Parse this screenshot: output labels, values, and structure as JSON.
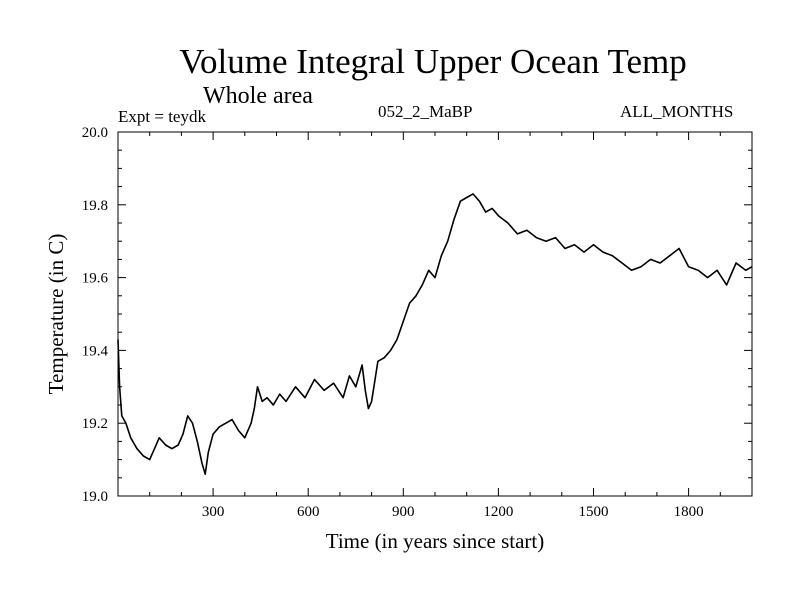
{
  "header": {
    "title": "Volume Integral Upper Ocean Temp",
    "subtitle": "Whole area",
    "experiment": "Expt = teydk",
    "run_label": "052_2_MaBP",
    "months_label": "ALL_MONTHS"
  },
  "chart_data": {
    "type": "line",
    "title": "Volume Integral Upper Ocean Temp",
    "xlabel": "Time (in years since start)",
    "ylabel": "Temperature (in C)",
    "xlim": [
      0,
      2000
    ],
    "ylim": [
      19.0,
      20.0
    ],
    "xticks": [
      300,
      600,
      900,
      1200,
      1500,
      1800
    ],
    "xtick_labels": [
      "300",
      "600",
      "900",
      "1200",
      "1500",
      "1800"
    ],
    "yticks": [
      19.0,
      19.2,
      19.4,
      19.6,
      19.8,
      20.0
    ],
    "ytick_labels": [
      "19.0",
      "19.2",
      "19.4",
      "19.6",
      "19.8",
      "20.0"
    ],
    "grid": false,
    "series": [
      {
        "name": "teydk",
        "x": [
          0,
          5,
          12,
          25,
          40,
          60,
          80,
          100,
          115,
          130,
          150,
          170,
          190,
          205,
          220,
          235,
          250,
          265,
          275,
          285,
          300,
          320,
          340,
          360,
          380,
          400,
          420,
          430,
          440,
          455,
          470,
          490,
          510,
          530,
          560,
          590,
          620,
          650,
          680,
          710,
          730,
          750,
          770,
          780,
          790,
          800,
          820,
          840,
          860,
          880,
          900,
          920,
          940,
          960,
          980,
          1000,
          1020,
          1040,
          1060,
          1080,
          1100,
          1120,
          1140,
          1160,
          1180,
          1200,
          1230,
          1260,
          1290,
          1320,
          1350,
          1380,
          1410,
          1440,
          1470,
          1500,
          1530,
          1560,
          1590,
          1620,
          1650,
          1680,
          1710,
          1740,
          1770,
          1800,
          1830,
          1860,
          1890,
          1920,
          1950,
          1980,
          2000
        ],
        "values": [
          19.43,
          19.3,
          19.22,
          19.2,
          19.16,
          19.13,
          19.11,
          19.1,
          19.13,
          19.16,
          19.14,
          19.13,
          19.14,
          19.17,
          19.22,
          19.2,
          19.15,
          19.09,
          19.06,
          19.12,
          19.17,
          19.19,
          19.2,
          19.21,
          19.18,
          19.16,
          19.2,
          19.24,
          19.3,
          19.26,
          19.27,
          19.25,
          19.28,
          19.26,
          19.3,
          19.27,
          19.32,
          19.29,
          19.31,
          19.27,
          19.33,
          19.3,
          19.36,
          19.29,
          19.24,
          19.26,
          19.37,
          19.38,
          19.4,
          19.43,
          19.48,
          19.53,
          19.55,
          19.58,
          19.62,
          19.6,
          19.66,
          19.7,
          19.76,
          19.81,
          19.82,
          19.83,
          19.81,
          19.78,
          19.79,
          19.77,
          19.75,
          19.72,
          19.73,
          19.71,
          19.7,
          19.71,
          19.68,
          19.69,
          19.67,
          19.69,
          19.67,
          19.66,
          19.64,
          19.62,
          19.63,
          19.65,
          19.64,
          19.66,
          19.68,
          19.63,
          19.62,
          19.6,
          19.62,
          19.58,
          19.64,
          19.62,
          19.63
        ]
      }
    ]
  }
}
